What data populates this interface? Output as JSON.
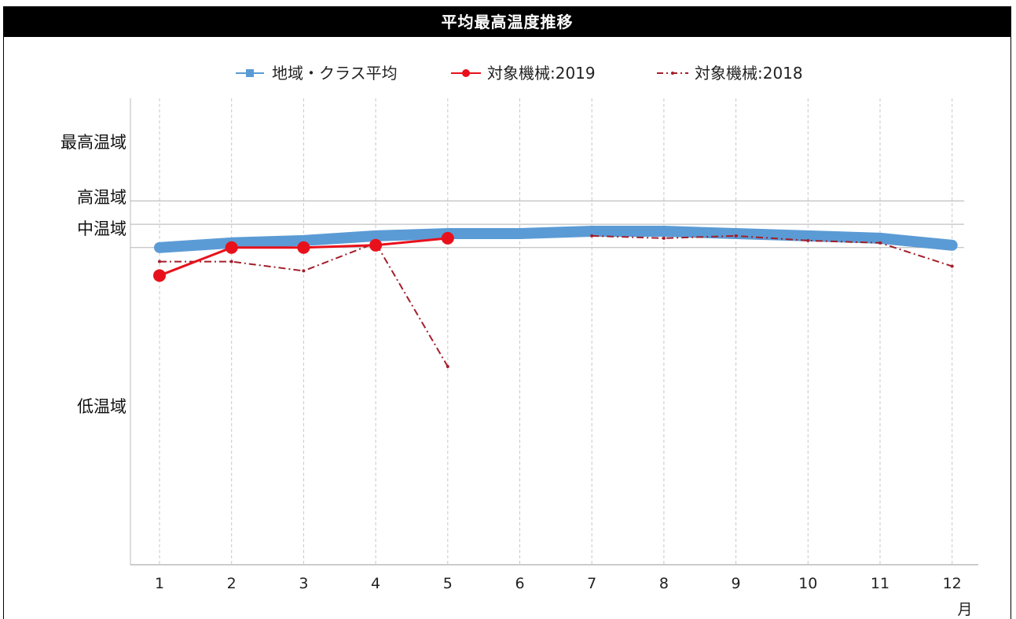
{
  "chart_data": {
    "type": "line",
    "title": "平均最高温度推移",
    "xlabel": "月",
    "x": [
      1,
      2,
      3,
      4,
      5,
      6,
      7,
      8,
      9,
      10,
      11,
      12
    ],
    "x_tick_labels": [
      "1",
      "2",
      "3",
      "4",
      "5",
      "6",
      "7",
      "8",
      "9",
      "10",
      "11",
      "12"
    ],
    "y_band_labels": [
      "最高温域",
      "高温域",
      "中温域",
      "低温域"
    ],
    "ylim": [
      0,
      100
    ],
    "grid": true,
    "legend_position": "top",
    "series": [
      {
        "name": "地域・クラス平均",
        "color": "#5b9bd5",
        "style": "thick-solid",
        "values": [
          68,
          69,
          69.5,
          70.5,
          71,
          71,
          71.5,
          71.5,
          71,
          70.5,
          70,
          68.5
        ]
      },
      {
        "name": "対象機械:2019",
        "color": "#e8111b",
        "style": "solid-circle",
        "values": [
          62,
          68,
          68,
          68.5,
          70,
          null,
          null,
          null,
          null,
          null,
          null,
          null
        ]
      },
      {
        "name": "対象機械:2018",
        "color": "#a31f2a",
        "style": "dash-dot",
        "values": [
          65,
          65,
          63,
          69,
          42.5,
          null,
          70.5,
          70,
          70.5,
          69.5,
          69,
          64
        ]
      }
    ]
  },
  "legend": [
    {
      "label": "地域・クラス平均",
      "icon": "blue-square-line"
    },
    {
      "label": "対象機械:2019",
      "icon": "red-circle-line"
    },
    {
      "label": "対象機械:2018",
      "icon": "dash-dot-line"
    }
  ]
}
